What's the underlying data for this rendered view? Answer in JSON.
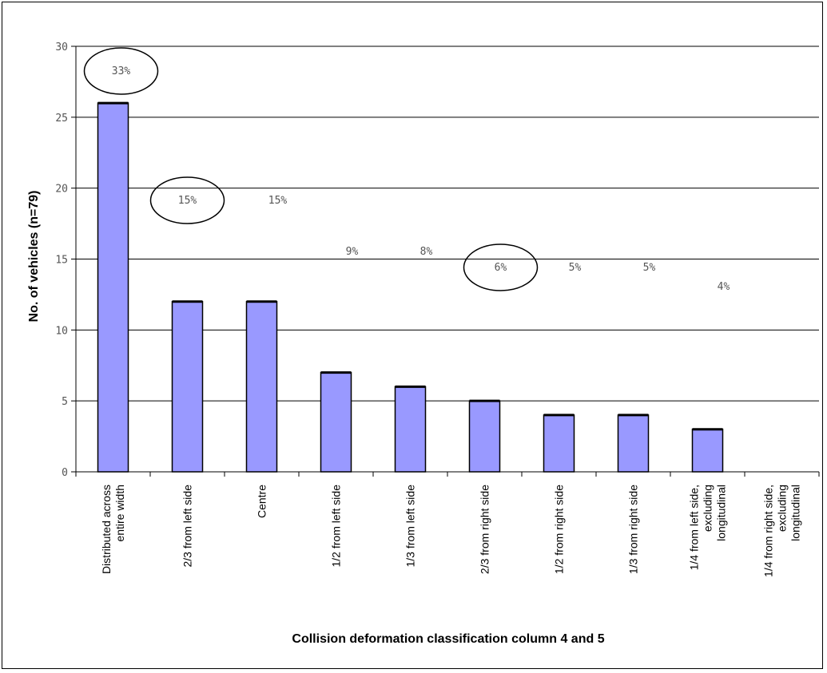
{
  "chart_data": {
    "type": "bar",
    "xlabel": "Collision deformation classification column 4 and 5",
    "ylabel": "No. of vehicles (n=79)",
    "ylim": [
      0,
      30
    ],
    "yticks": [
      0,
      5,
      10,
      15,
      20,
      25,
      30
    ],
    "grid": true,
    "categories": [
      [
        "Distributed across",
        "entire width"
      ],
      [
        "2/3 from left side"
      ],
      [
        "Centre"
      ],
      [
        "1/2 from left side"
      ],
      [
        "1/3 from left side"
      ],
      [
        "2/3 from right side"
      ],
      [
        "1/2 from right side"
      ],
      [
        "1/3 from right side"
      ],
      [
        "1/4 from left side,",
        "excluding",
        "longitudinal"
      ],
      [
        "1/4 from right side,",
        "excluding",
        "longitudinal"
      ]
    ],
    "values": [
      26,
      12,
      12,
      7,
      6,
      5,
      4,
      4,
      3,
      0
    ],
    "percent_labels": [
      "33%",
      "15%",
      "15%",
      "9%",
      "8%",
      "6%",
      "5%",
      "5%",
      "4%",
      ""
    ],
    "circled": [
      true,
      true,
      false,
      false,
      false,
      true,
      false,
      false,
      false,
      false
    ],
    "bar_color": "#9999ff",
    "bar_edge_color": "#000000"
  }
}
